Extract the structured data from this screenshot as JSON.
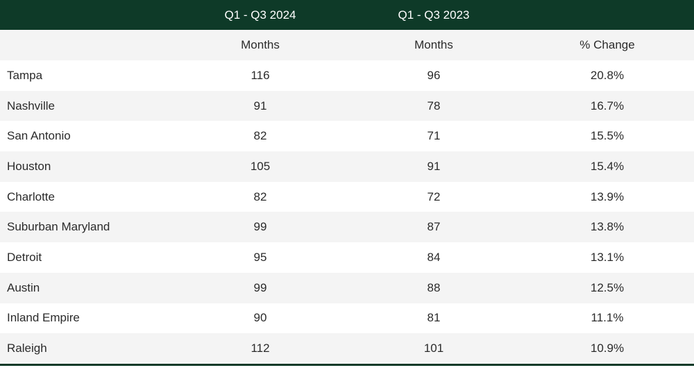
{
  "chart_data": {
    "type": "table",
    "period_headers": [
      "Q1 - Q3 2024",
      "Q1 - Q3 2023"
    ],
    "column_headers": [
      "Months",
      "Months",
      "% Change"
    ],
    "rows": [
      {
        "city": "Tampa",
        "months_2024": "116",
        "months_2023": "96",
        "change": "20.8%"
      },
      {
        "city": "Nashville",
        "months_2024": "91",
        "months_2023": "78",
        "change": "16.7%"
      },
      {
        "city": "San Antonio",
        "months_2024": "82",
        "months_2023": "71",
        "change": "15.5%"
      },
      {
        "city": "Houston",
        "months_2024": "105",
        "months_2023": "91",
        "change": "15.4%"
      },
      {
        "city": "Charlotte",
        "months_2024": "82",
        "months_2023": "72",
        "change": "13.9%"
      },
      {
        "city": "Suburban Maryland",
        "months_2024": "99",
        "months_2023": "87",
        "change": "13.8%"
      },
      {
        "city": "Detroit",
        "months_2024": "95",
        "months_2023": "84",
        "change": "13.1%"
      },
      {
        "city": "Austin",
        "months_2024": "99",
        "months_2023": "88",
        "change": "12.5%"
      },
      {
        "city": "Inland Empire",
        "months_2024": "90",
        "months_2023": "81",
        "change": "11.1%"
      },
      {
        "city": "Raleigh",
        "months_2024": "112",
        "months_2023": "101",
        "change": "10.9%"
      }
    ]
  },
  "colors": {
    "header_band": "#0e3a28",
    "header_text": "#ffffff",
    "row_alt": "#f4f4f4",
    "row_white": "#ffffff",
    "text": "#2b2b2b"
  }
}
